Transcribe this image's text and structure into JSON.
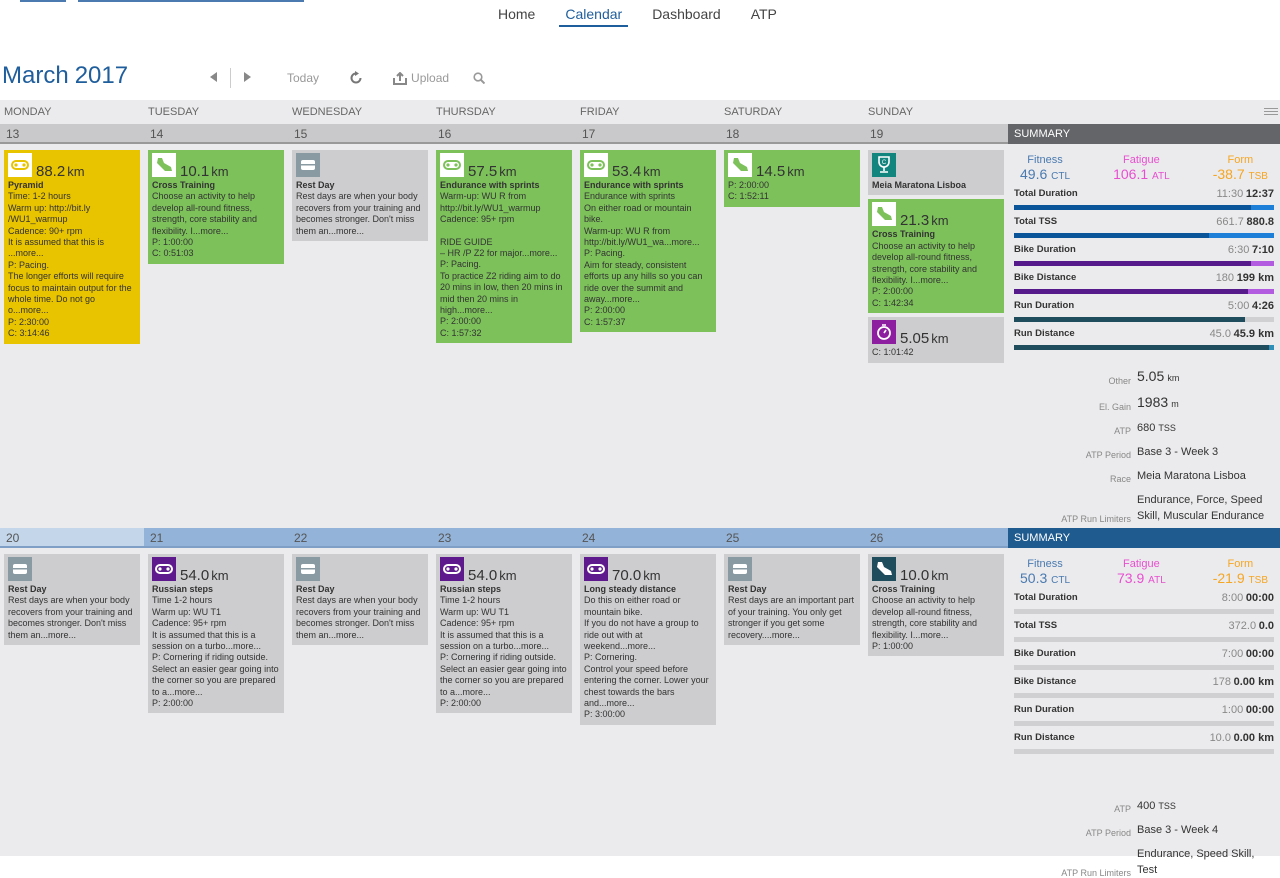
{
  "nav": {
    "items": [
      "Home",
      "Calendar",
      "Dashboard",
      "ATP"
    ],
    "active": 1
  },
  "header": {
    "month": "March",
    "year": "2017",
    "today": "Today",
    "upload": "Upload"
  },
  "days": [
    "MONDAY",
    "TUESDAY",
    "WEDNESDAY",
    "THURSDAY",
    "FRIDAY",
    "SATURDAY",
    "SUNDAY"
  ],
  "colors": {
    "yellow": "#e8c300",
    "green": "#7dc15b",
    "gray": "#cdcdcf",
    "restIcon": "#8a9aa2",
    "raceIcon": "#13857f",
    "stopwatchIcon": "#8d1ea0",
    "bikePurple": "#5e1a8c",
    "shoeTeal": "#1f4d5e",
    "fitness": "#4a7ab0",
    "fatigue": "#e84fd0",
    "form": "#f5a623"
  },
  "weeks": [
    {
      "dates": [
        "13",
        "14",
        "15",
        "16",
        "17",
        "18",
        "19"
      ],
      "summary_label": "SUMMARY",
      "cells": [
        [
          {
            "type": "bike",
            "bg": "yellow",
            "dist": "88.2",
            "unit": "km",
            "title": "Pyramid",
            "lines": [
              "Time: 1-2 hours",
              "Warm up: http://bit.ly",
              "/WU1_warmup",
              "Cadence: 90+ rpm",
              "It is assumed that this is",
              "...more...",
              "P: Pacing.",
              "The longer efforts will require focus to maintain output for the whole time. Do not go o...more...",
              "P: 2:30:00",
              "C: 3:14:46"
            ]
          }
        ],
        [
          {
            "type": "shoe",
            "bg": "green",
            "dist": "10.1",
            "unit": "km",
            "title": "Cross Training",
            "lines": [
              "Choose an activity to help develop all-round fitness, strength, core stability and flexibility. I...more...",
              "P: 1:00:00",
              "C: 0:51:03"
            ]
          }
        ],
        [
          {
            "type": "rest",
            "bg": "gray",
            "title": "Rest Day",
            "lines": [
              "Rest days are when your body recovers from your training and becomes stronger. Don't miss them an...more..."
            ]
          }
        ],
        [
          {
            "type": "bike",
            "bg": "green",
            "dist": "57.5",
            "unit": "km",
            "title": "Endurance with sprints",
            "lines": [
              "Warm-up: WU R from",
              "http://bit.ly/WU1_warmup",
              "Cadence: 95+ rpm",
              "",
              "RIDE GUIDE",
              "– HR /P Z2 for major...more...",
              "P: Pacing.",
              "To practice Z2 riding aim to do 20 mins in low, then 20 mins in mid then 20 mins in high...more...",
              "P: 2:00:00",
              "C: 1:57:32"
            ]
          }
        ],
        [
          {
            "type": "bike",
            "bg": "green",
            "dist": "53.4",
            "unit": "km",
            "title": "Endurance with sprints",
            "lines": [
              "Endurance with sprints",
              "On either road or mountain bike.",
              "Warm-up: WU R from",
              "http://bit.ly/WU1_wa...more...",
              "P: Pacing.",
              "Aim for steady, consistent efforts up any hills so you can ride over the summit and away...more...",
              "P: 2:00:00",
              "C: 1:57:37"
            ]
          }
        ],
        [
          {
            "type": "shoe",
            "bg": "green",
            "dist": "14.5",
            "unit": "km",
            "lines": [
              "P: 2:00:00",
              "C: 1:52:11"
            ]
          }
        ],
        [
          {
            "type": "race",
            "bg": "gray",
            "title": "Meia Maratona Lisboa",
            "lines": []
          },
          {
            "type": "shoe",
            "bg": "green",
            "dist": "21.3",
            "unit": "km",
            "title": "Cross Training",
            "lines": [
              "Choose an activity to help develop all-round fitness, strength, core stability and flexibility. I...more...",
              "P: 2:00:00",
              "C: 1:42:34"
            ]
          },
          {
            "type": "stopwatch",
            "bg": "gray",
            "dist": "5.05",
            "unit": "km",
            "lines": [
              "C: 1:01:42"
            ]
          }
        ]
      ],
      "summary": {
        "fitness": {
          "label": "Fitness",
          "value": "49.6",
          "unit": "CTL"
        },
        "fatigue": {
          "label": "Fatigue",
          "value": "106.1",
          "unit": "ATL"
        },
        "form": {
          "label": "Form",
          "value": "-38.7",
          "unit": "TSB"
        },
        "rows": [
          {
            "label": "Total Duration",
            "planned": "11:30",
            "completed": "12:37",
            "fill": 0.91,
            "kind": "total",
            "over": true
          },
          {
            "label": "Total TSS",
            "planned": "661.7",
            "completed": "880.8",
            "fill": 0.75,
            "kind": "total",
            "over": true
          },
          {
            "label": "Bike Duration",
            "planned": "6:30",
            "completed": "7:10",
            "fill": 0.91,
            "kind": "bike",
            "over": true
          },
          {
            "label": "Bike Distance",
            "planned": "180",
            "completed": "199 km",
            "fill": 0.9,
            "kind": "bike",
            "over": true
          },
          {
            "label": "Run Duration",
            "planned": "5:00",
            "completed": "4:26",
            "fill": 0.89,
            "kind": "run",
            "over": false
          },
          {
            "label": "Run Distance",
            "planned": "45.0",
            "completed": "45.9 km",
            "fill": 0.98,
            "kind": "run",
            "over": true
          }
        ],
        "info": [
          {
            "key": "Other",
            "value": "5.05",
            "unit": "km",
            "big": true
          },
          {
            "key": "El. Gain",
            "value": "1983",
            "unit": "m",
            "big": true
          },
          {
            "key": "ATP",
            "value": "680",
            "unit": "TSS"
          },
          {
            "key": "ATP Period",
            "value": "Base 3 - Week 3"
          },
          {
            "key": "Race",
            "value": "Meia Maratona Lisboa"
          },
          {
            "key": "ATP Run Limiters",
            "value": "Endurance, Force, Speed Skill, Muscular Endurance"
          }
        ]
      }
    },
    {
      "dates": [
        "20",
        "21",
        "22",
        "23",
        "24",
        "25",
        "26"
      ],
      "summary_label": "SUMMARY",
      "cells": [
        [
          {
            "type": "rest",
            "bg": "gray",
            "title": "Rest Day",
            "lines": [
              "Rest days are when your body recovers from your training and becomes stronger. Don't miss them an...more..."
            ]
          }
        ],
        [
          {
            "type": "bike",
            "bg": "gray",
            "dark": "bikePurple",
            "dist": "54.0",
            "unit": "km",
            "title": "Russian steps",
            "lines": [
              "Time 1-2 hours",
              "Warm up: WU T1",
              "Cadence: 95+ rpm",
              "It is assumed that this is a session on a turbo...more...",
              "P: Cornering if riding outside.",
              "Select an easier gear going into the corner so you are prepared to a...more...",
              "P: 2:00:00"
            ]
          }
        ],
        [
          {
            "type": "rest",
            "bg": "gray",
            "title": "Rest Day",
            "lines": [
              "Rest days are when your body recovers from your training and becomes stronger. Don't miss them an...more..."
            ]
          }
        ],
        [
          {
            "type": "bike",
            "bg": "gray",
            "dark": "bikePurple",
            "dist": "54.0",
            "unit": "km",
            "title": "Russian steps",
            "lines": [
              "Time 1-2 hours",
              "Warm up: WU T1",
              "Cadence: 95+ rpm",
              "It is assumed that this is a session on a turbo...more...",
              "P: Cornering if riding outside.",
              "Select an easier gear going into the corner so you are prepared to a...more...",
              "P: 2:00:00"
            ]
          }
        ],
        [
          {
            "type": "bike",
            "bg": "gray",
            "dark": "bikePurple",
            "dist": "70.0",
            "unit": "km",
            "title": "Long steady distance",
            "lines": [
              "Do this on either road or mountain bike.",
              "If you do not have a group to ride out with at weekend...more...",
              "P: Cornering.",
              "Control your speed before entering the corner. Lower your chest towards the bars and...more...",
              "P: 3:00:00"
            ]
          }
        ],
        [
          {
            "type": "rest",
            "bg": "gray",
            "title": "Rest Day",
            "lines": [
              "Rest days are an important part of your training. You only get stronger if you get some recovery....more..."
            ]
          }
        ],
        [
          {
            "type": "shoe",
            "bg": "gray",
            "dark": "shoeTeal",
            "dist": "10.0",
            "unit": "km",
            "title": "Cross Training",
            "lines": [
              "Choose an activity to help develop all-round fitness, strength, core stability and flexibility. I...more...",
              "P: 1:00:00"
            ]
          }
        ]
      ],
      "summary": {
        "fitness": {
          "label": "Fitness",
          "value": "50.3",
          "unit": "CTL"
        },
        "fatigue": {
          "label": "Fatigue",
          "value": "73.9",
          "unit": "ATL"
        },
        "form": {
          "label": "Form",
          "value": "-21.9",
          "unit": "TSB"
        },
        "rows": [
          {
            "label": "Total Duration",
            "planned": "8:00",
            "completed": "00:00",
            "fill": 0,
            "kind": "total"
          },
          {
            "label": "Total TSS",
            "planned": "372.0",
            "completed": "0.0",
            "fill": 0,
            "kind": "total"
          },
          {
            "label": "Bike Duration",
            "planned": "7:00",
            "completed": "00:00",
            "fill": 0,
            "kind": "bike"
          },
          {
            "label": "Bike Distance",
            "planned": "178",
            "completed": "0.00 km",
            "fill": 0,
            "kind": "bike"
          },
          {
            "label": "Run Duration",
            "planned": "1:00",
            "completed": "00:00",
            "fill": 0,
            "kind": "run"
          },
          {
            "label": "Run Distance",
            "planned": "10.0",
            "completed": "0.00 km",
            "fill": 0,
            "kind": "run"
          }
        ],
        "info": [
          {
            "key": "ATP",
            "value": "400",
            "unit": "TSS"
          },
          {
            "key": "ATP Period",
            "value": "Base 3 - Week 4"
          },
          {
            "key": "ATP Run Limiters",
            "value": "Endurance, Speed Skill, Test"
          }
        ]
      }
    }
  ]
}
